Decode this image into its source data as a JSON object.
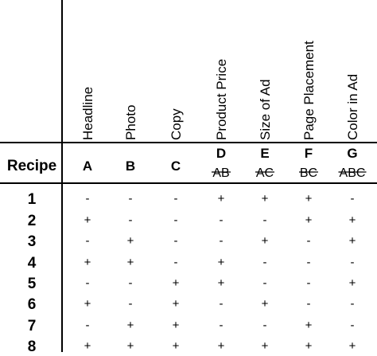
{
  "table": {
    "recipe_label": "Recipe",
    "factors": [
      {
        "name": "Headline",
        "letter": "A",
        "interaction": ""
      },
      {
        "name": "Photo",
        "letter": "B",
        "interaction": ""
      },
      {
        "name": "Copy",
        "letter": "C",
        "interaction": ""
      },
      {
        "name": "Product Price",
        "letter": "D",
        "interaction": "AB"
      },
      {
        "name": "Size of Ad",
        "letter": "E",
        "interaction": "AC"
      },
      {
        "name": "Page Placement",
        "letter": "F",
        "interaction": "BC"
      },
      {
        "name": "Color in Ad",
        "letter": "G",
        "interaction": "ABC"
      }
    ],
    "rows": [
      {
        "recipe": "1",
        "levels": [
          "-",
          "-",
          "-",
          "+",
          "+",
          "+",
          "-"
        ]
      },
      {
        "recipe": "2",
        "levels": [
          "+",
          "-",
          "-",
          "-",
          "-",
          "+",
          "+"
        ]
      },
      {
        "recipe": "3",
        "levels": [
          "-",
          "+",
          "-",
          "-",
          "+",
          "-",
          "+"
        ]
      },
      {
        "recipe": "4",
        "levels": [
          "+",
          "+",
          "-",
          "+",
          "-",
          "-",
          "-"
        ]
      },
      {
        "recipe": "5",
        "levels": [
          "-",
          "-",
          "+",
          "+",
          "-",
          "-",
          "+"
        ]
      },
      {
        "recipe": "6",
        "levels": [
          "+",
          "-",
          "+",
          "-",
          "+",
          "-",
          "-"
        ]
      },
      {
        "recipe": "7",
        "levels": [
          "-",
          "+",
          "+",
          "-",
          "-",
          "+",
          "-"
        ]
      },
      {
        "recipe": "8",
        "levels": [
          "+",
          "+",
          "+",
          "+",
          "+",
          "+",
          "+"
        ]
      }
    ]
  }
}
